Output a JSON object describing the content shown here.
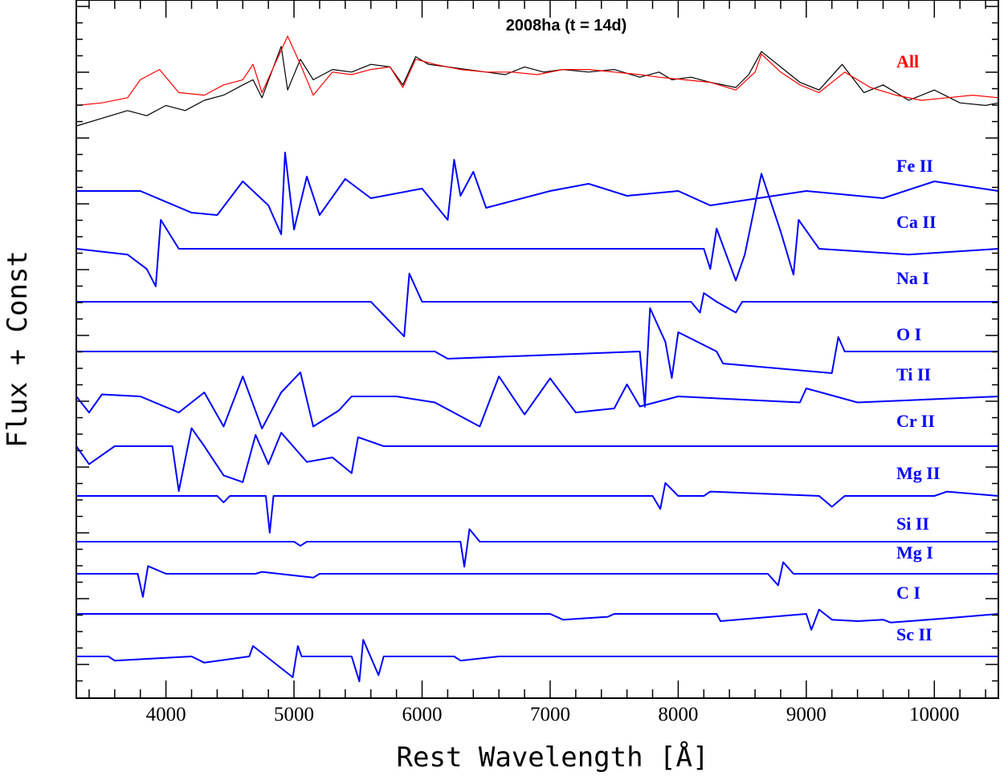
{
  "chart_data": {
    "type": "line",
    "title": "2008ha (t = 14d)",
    "xlabel": "Rest Wavelength [Å]",
    "ylabel": "Flux + Const",
    "xlim": [
      3300,
      10500
    ],
    "xticks": [
      4000,
      5000,
      6000,
      7000,
      8000,
      9000,
      10000
    ],
    "x_tick_labels": [
      "4000",
      "5000",
      "6000",
      "7000",
      "8000",
      "9000",
      "10000"
    ],
    "y_tick_labels_shown": false,
    "grid": false,
    "colors": {
      "observed": "#000000",
      "model": "#ff0000",
      "ions": "#0000ff"
    },
    "observed": {
      "x": [
        3300,
        3500,
        3700,
        3850,
        4000,
        4150,
        4300,
        4450,
        4600,
        4680,
        4750,
        4900,
        4950,
        5050,
        5150,
        5300,
        5450,
        5600,
        5750,
        5850,
        5950,
        6050,
        6200,
        6350,
        6500,
        6650,
        6800,
        6950,
        7100,
        7300,
        7500,
        7700,
        7850,
        7950,
        8100,
        8250,
        8450,
        8550,
        8650,
        8800,
        8950,
        9100,
        9280,
        9450,
        9600,
        9800,
        10000,
        10200,
        10400,
        10500
      ],
      "y": [
        1.5,
        1.8,
        2.1,
        1.9,
        2.3,
        2.1,
        2.5,
        2.7,
        3.1,
        3.3,
        2.6,
        4.6,
        2.9,
        4.1,
        3.3,
        3.7,
        3.6,
        3.9,
        3.8,
        3.1,
        4.2,
        3.9,
        3.8,
        3.7,
        3.6,
        3.5,
        3.8,
        3.6,
        3.7,
        3.6,
        3.7,
        3.4,
        3.6,
        3.3,
        3.4,
        3.2,
        3.0,
        3.5,
        4.4,
        3.8,
        3.2,
        2.9,
        3.9,
        2.8,
        3.1,
        2.5,
        2.9,
        2.4,
        2.3,
        2.4
      ]
    },
    "series": [
      {
        "name": "All",
        "x": [
          3300,
          3500,
          3700,
          3800,
          3950,
          4100,
          4300,
          4450,
          4600,
          4680,
          4750,
          4950,
          5050,
          5150,
          5300,
          5450,
          5600,
          5750,
          5850,
          5950,
          6100,
          6300,
          6500,
          6700,
          6900,
          7100,
          7300,
          7500,
          7700,
          7850,
          8050,
          8250,
          8450,
          8600,
          8650,
          8800,
          8950,
          9100,
          9300,
          9500,
          9700,
          9900,
          10100,
          10300,
          10500
        ],
        "y": [
          2.3,
          2.4,
          2.6,
          3.3,
          3.7,
          2.8,
          2.7,
          3.1,
          3.3,
          3.9,
          2.8,
          5.0,
          3.9,
          2.7,
          3.6,
          3.5,
          3.7,
          3.8,
          3.0,
          4.1,
          3.9,
          3.7,
          3.6,
          3.6,
          3.5,
          3.7,
          3.7,
          3.6,
          3.5,
          3.4,
          3.3,
          3.2,
          2.9,
          3.6,
          4.3,
          3.6,
          3.1,
          2.8,
          3.6,
          3.0,
          2.7,
          2.5,
          2.6,
          2.7,
          2.6
        ]
      },
      {
        "name": "Fe II",
        "x": [
          3300,
          3800,
          4200,
          4400,
          4600,
          4800,
          4900,
          4930,
          5000,
          5100,
          5200,
          5400,
          5600,
          6000,
          6200,
          6250,
          6300,
          6400,
          6500,
          7000,
          7300,
          7600,
          8000,
          8250,
          9000,
          9600,
          10000,
          10500
        ],
        "y": [
          0,
          0,
          -0.9,
          -1.0,
          0.4,
          -0.6,
          -1.8,
          1.6,
          -1.6,
          0.6,
          -1.0,
          0.5,
          -0.3,
          0.1,
          -1.2,
          1.3,
          -0.2,
          0.8,
          -0.7,
          0.0,
          0.3,
          -0.2,
          0.0,
          -0.6,
          0.0,
          -0.3,
          0.4,
          0.0
        ]
      },
      {
        "name": "Ca II",
        "x": [
          3300,
          3700,
          3850,
          3920,
          3960,
          4100,
          8200,
          8250,
          8300,
          8450,
          8520,
          8650,
          8800,
          8900,
          8940,
          9100,
          9800,
          10500
        ],
        "y": [
          0,
          -0.2,
          -0.7,
          -1.3,
          1.0,
          0.0,
          0.0,
          -0.7,
          0.7,
          -1.1,
          -0.2,
          2.6,
          0.6,
          -0.9,
          1.0,
          0.0,
          -0.2,
          0.0
        ]
      },
      {
        "name": "Na I",
        "x": [
          3300,
          5600,
          5860,
          5900,
          6000,
          8100,
          8170,
          8200,
          8300,
          8450,
          8500,
          10500
        ],
        "y": [
          0,
          0,
          -1.6,
          1.3,
          0.0,
          0.0,
          -0.5,
          0.4,
          0.0,
          -0.5,
          0.0,
          0.0
        ]
      },
      {
        "name": "O I",
        "x": [
          3300,
          6100,
          6200,
          7700,
          7740,
          7780,
          7900,
          7950,
          8000,
          8300,
          8350,
          9200,
          9250,
          9300,
          9400,
          10500
        ],
        "y": [
          0,
          0,
          -0.3,
          0.0,
          -2.3,
          1.8,
          0.4,
          -1.1,
          0.8,
          0.0,
          -0.5,
          -0.9,
          0.6,
          0.0,
          0.0,
          0.0
        ]
      },
      {
        "name": "Ti II",
        "x": [
          3300,
          3400,
          3500,
          3800,
          4100,
          4300,
          4450,
          4600,
          4750,
          4900,
          5050,
          5150,
          5350,
          5450,
          5800,
          6100,
          6450,
          6600,
          6800,
          7000,
          7200,
          7500,
          7600,
          7700,
          8000,
          8950,
          9000,
          9400,
          10500
        ],
        "y": [
          0,
          -0.8,
          0.1,
          0.0,
          -0.8,
          0.2,
          -1.5,
          1.0,
          -1.6,
          0.2,
          1.2,
          -1.5,
          -0.7,
          0.0,
          0.0,
          -0.3,
          -1.5,
          1.0,
          -0.9,
          0.9,
          -0.8,
          -0.6,
          0.6,
          -0.5,
          0.0,
          -0.3,
          0.4,
          -0.3,
          0.0
        ]
      },
      {
        "name": "Cr II",
        "x": [
          3300,
          3400,
          3600,
          4050,
          4100,
          4200,
          4300,
          4450,
          4600,
          4700,
          4800,
          4900,
          5100,
          5300,
          5450,
          5500,
          5700,
          6000,
          7000,
          8000,
          10500
        ],
        "y": [
          0,
          -0.8,
          0.0,
          0.0,
          -2.0,
          0.8,
          0.0,
          -1.3,
          -1.6,
          0.5,
          -0.8,
          0.6,
          -0.7,
          -0.5,
          -1.2,
          0.4,
          0.0,
          0.0,
          0.0,
          0.0,
          0.0
        ]
      },
      {
        "name": "Mg II",
        "x": [
          3300,
          4400,
          4450,
          4500,
          4780,
          4810,
          4840,
          7800,
          7860,
          7900,
          8000,
          8200,
          8250,
          9100,
          9200,
          9300,
          10000,
          10100,
          10500
        ],
        "y": [
          0,
          0,
          -0.3,
          0.0,
          0.0,
          -1.7,
          0.0,
          0.0,
          -0.6,
          0.6,
          0.0,
          0.0,
          0.2,
          0.0,
          -0.5,
          0.0,
          0.0,
          0.2,
          0.0
        ]
      },
      {
        "name": "Si II",
        "x": [
          3300,
          5000,
          5050,
          5100,
          6300,
          6330,
          6370,
          6450,
          10500
        ],
        "y": [
          0,
          0,
          -0.2,
          0.0,
          0.0,
          -1.2,
          0.6,
          0.0,
          0.0
        ]
      },
      {
        "name": "Mg I",
        "x": [
          3300,
          3780,
          3820,
          3860,
          4000,
          4700,
          4750,
          5150,
          5200,
          8700,
          8780,
          8820,
          8900,
          10500
        ],
        "y": [
          0,
          0,
          -1.2,
          0.4,
          0.0,
          0.0,
          0.1,
          -0.2,
          0.0,
          0.0,
          -0.6,
          0.6,
          0.0,
          0.0
        ]
      },
      {
        "name": "C I",
        "x": [
          3300,
          7000,
          7100,
          7450,
          7500,
          8300,
          8330,
          9000,
          9040,
          9100,
          9200,
          9400,
          9600,
          9660,
          10100,
          10500
        ],
        "y": [
          0,
          0,
          -0.4,
          -0.2,
          0.0,
          0.0,
          -0.5,
          0.0,
          -1.1,
          0.3,
          -0.4,
          -0.5,
          -0.4,
          -0.6,
          -0.3,
          0.0
        ]
      },
      {
        "name": "Sc II",
        "x": [
          3300,
          3550,
          3600,
          4200,
          4300,
          4650,
          4680,
          4990,
          5030,
          5060,
          5450,
          5510,
          5540,
          5660,
          5700,
          6250,
          6300,
          6600,
          10500
        ],
        "y": [
          0,
          0,
          -0.2,
          0.0,
          -0.3,
          0.0,
          0.5,
          -1.0,
          0.5,
          0.0,
          0.0,
          -1.2,
          0.8,
          -0.9,
          0.0,
          0.0,
          -0.2,
          0.0,
          0.0
        ]
      }
    ]
  }
}
